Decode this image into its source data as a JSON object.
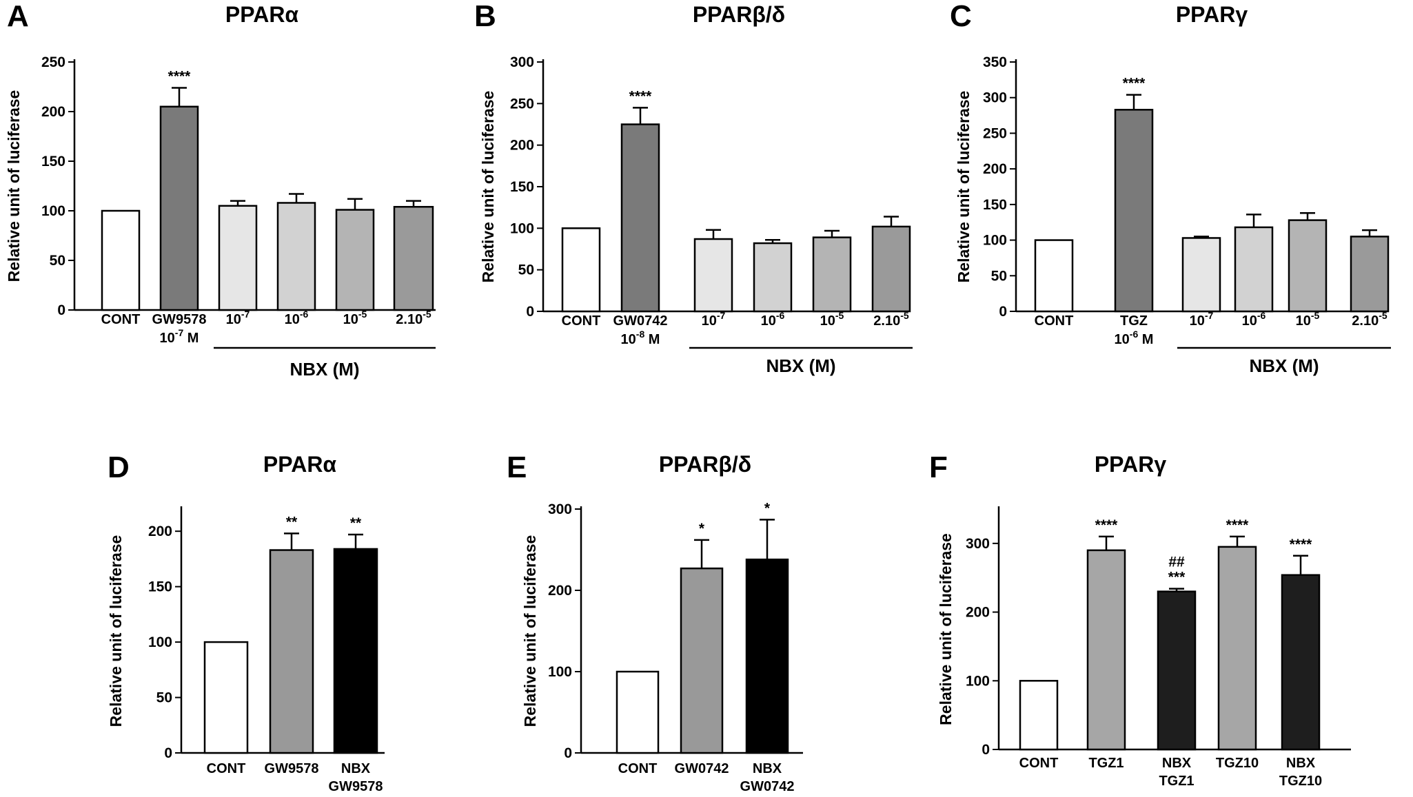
{
  "chart_data": [
    {
      "panel": "A",
      "type": "bar",
      "title": "PPARα",
      "ylabel": "Relative unit of luciferase",
      "xlabel": "",
      "ylim": [
        0,
        250
      ],
      "yticks": [
        0,
        50,
        100,
        150,
        200,
        250
      ],
      "categories": [
        {
          "line1": "CONT",
          "line2": ""
        },
        {
          "line1": "GW9578",
          "line2": "10⁻⁷ M"
        },
        {
          "line1": "10⁻⁷",
          "line2": ""
        },
        {
          "line1": "10⁻⁶",
          "line2": ""
        },
        {
          "line1": "10⁻⁵",
          "line2": ""
        },
        {
          "line1": "2.10⁻⁵",
          "line2": ""
        }
      ],
      "values": [
        100,
        205,
        105,
        108,
        101,
        104
      ],
      "errors": [
        0,
        19,
        5,
        9,
        11,
        6
      ],
      "colors": [
        "#ffffff",
        "#7a7a7a",
        "#e6e6e6",
        "#d2d2d2",
        "#b4b4b4",
        "#9a9a9a"
      ],
      "significance": [
        "",
        "****",
        "",
        "",
        "",
        ""
      ],
      "significance2": [
        "",
        "",
        "",
        "",
        "",
        ""
      ],
      "group": {
        "label": "NBX (M)",
        "from": 2,
        "to": 5
      }
    },
    {
      "panel": "B",
      "type": "bar",
      "title": "PPARβ/δ",
      "ylabel": "Relative unit of luciferase",
      "xlabel": "",
      "ylim": [
        0,
        300
      ],
      "yticks": [
        0,
        50,
        100,
        150,
        200,
        250,
        300
      ],
      "categories": [
        {
          "line1": "CONT",
          "line2": ""
        },
        {
          "line1": "GW0742",
          "line2": "10⁻⁸ M"
        },
        {
          "line1": "10⁻⁷",
          "line2": ""
        },
        {
          "line1": "10⁻⁶",
          "line2": ""
        },
        {
          "line1": "10⁻⁵",
          "line2": ""
        },
        {
          "line1": "2.10⁻⁵",
          "line2": ""
        }
      ],
      "values": [
        100,
        225,
        87,
        82,
        89,
        102
      ],
      "errors": [
        0,
        20,
        11,
        4,
        8,
        12
      ],
      "colors": [
        "#ffffff",
        "#7a7a7a",
        "#e6e6e6",
        "#d2d2d2",
        "#b4b4b4",
        "#9a9a9a"
      ],
      "significance": [
        "",
        "****",
        "",
        "",
        "",
        ""
      ],
      "significance2": [
        "",
        "",
        "",
        "",
        "",
        ""
      ],
      "group": {
        "label": "NBX (M)",
        "from": 2,
        "to": 5
      }
    },
    {
      "panel": "C",
      "type": "bar",
      "title": "PPARγ",
      "ylabel": "Relative unit of luciferase",
      "xlabel": "",
      "ylim": [
        0,
        350
      ],
      "yticks": [
        0,
        50,
        100,
        150,
        200,
        250,
        300,
        350
      ],
      "categories": [
        {
          "line1": "CONT",
          "line2": ""
        },
        {
          "line1": "TGZ",
          "line2": "10⁻⁶ M"
        },
        {
          "line1": "10⁻⁷",
          "line2": ""
        },
        {
          "line1": "10⁻⁶",
          "line2": ""
        },
        {
          "line1": "10⁻⁵",
          "line2": ""
        },
        {
          "line1": "2.10⁻⁵",
          "line2": ""
        }
      ],
      "values": [
        100,
        283,
        103,
        118,
        128,
        105
      ],
      "errors": [
        0,
        21,
        2,
        18,
        10,
        9
      ],
      "colors": [
        "#ffffff",
        "#7a7a7a",
        "#e6e6e6",
        "#d2d2d2",
        "#b4b4b4",
        "#9a9a9a"
      ],
      "significance": [
        "",
        "****",
        "",
        "",
        "",
        ""
      ],
      "significance2": [
        "",
        "",
        "",
        "",
        "",
        ""
      ],
      "group": {
        "label": "NBX (M)",
        "from": 2,
        "to": 5
      }
    },
    {
      "panel": "D",
      "type": "bar",
      "title": "PPARα",
      "ylabel": "Relative unit of luciferase",
      "xlabel": "",
      "ylim": [
        0,
        220
      ],
      "yticks": [
        0,
        50,
        100,
        150,
        200
      ],
      "categories": [
        {
          "line1": "CONT",
          "line2": ""
        },
        {
          "line1": "GW9578",
          "line2": ""
        },
        {
          "line1": "NBX",
          "line2": "GW9578"
        }
      ],
      "values": [
        100,
        183,
        184
      ],
      "errors": [
        0,
        15,
        13
      ],
      "colors": [
        "#ffffff",
        "#999999",
        "#000000"
      ],
      "significance": [
        "",
        "**",
        "**"
      ],
      "significance2": [
        "",
        "",
        ""
      ]
    },
    {
      "panel": "E",
      "type": "bar",
      "title": "PPARβ/δ",
      "ylabel": "Relative unit of luciferase",
      "xlabel": "",
      "ylim": [
        0,
        300
      ],
      "yticks": [
        0,
        100,
        200,
        300
      ],
      "categories": [
        {
          "line1": "CONT",
          "line2": ""
        },
        {
          "line1": "GW0742",
          "line2": ""
        },
        {
          "line1": "NBX",
          "line2": "GW0742"
        }
      ],
      "values": [
        100,
        227,
        238
      ],
      "errors": [
        0,
        35,
        49
      ],
      "colors": [
        "#ffffff",
        "#999999",
        "#000000"
      ],
      "significance": [
        "",
        "*",
        "*"
      ],
      "significance2": [
        "",
        "",
        ""
      ]
    },
    {
      "panel": "F",
      "type": "bar",
      "title": "PPARγ",
      "ylabel": "Relative unit of luciferase",
      "xlabel": "",
      "ylim": [
        0,
        350
      ],
      "yticks": [
        0,
        100,
        200,
        300
      ],
      "categories": [
        {
          "line1": "CONT",
          "line2": ""
        },
        {
          "line1": "TGZ1",
          "line2": ""
        },
        {
          "line1": "NBX",
          "line2": "TGZ1"
        },
        {
          "line1": "TGZ10",
          "line2": ""
        },
        {
          "line1": "NBX",
          "line2": "TGZ10"
        }
      ],
      "values": [
        100,
        290,
        230,
        295,
        254
      ],
      "errors": [
        0,
        20,
        4,
        15,
        28
      ],
      "colors": [
        "#ffffff",
        "#a6a6a6",
        "#1e1e1e",
        "#a6a6a6",
        "#1e1e1e"
      ],
      "significance": [
        "",
        "****",
        "***",
        "****",
        "****"
      ],
      "significance2": [
        "",
        "",
        "##",
        "",
        ""
      ]
    }
  ]
}
